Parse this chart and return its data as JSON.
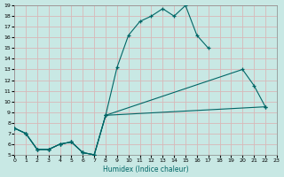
{
  "xlabel": "Humidex (Indice chaleur)",
  "bg_color": "#c8e8e4",
  "grid_color": "#d8b8b8",
  "line_color": "#006666",
  "xlim": [
    0,
    23
  ],
  "ylim": [
    5,
    19
  ],
  "xticks": [
    0,
    1,
    2,
    3,
    4,
    5,
    6,
    7,
    8,
    9,
    10,
    11,
    12,
    13,
    14,
    15,
    16,
    17,
    18,
    19,
    20,
    21,
    22,
    23
  ],
  "yticks": [
    5,
    6,
    7,
    8,
    9,
    10,
    11,
    12,
    13,
    14,
    15,
    16,
    17,
    18,
    19
  ],
  "curve1_x": [
    0,
    1,
    2,
    3,
    4,
    5,
    6,
    7,
    8,
    9,
    10,
    11,
    12,
    13,
    14,
    15,
    16,
    17
  ],
  "curve1_y": [
    7.5,
    7.0,
    5.5,
    5.5,
    6.0,
    6.2,
    5.2,
    5.0,
    8.7,
    13.2,
    16.2,
    17.5,
    18.0,
    18.7,
    18.0,
    19.0,
    16.2,
    15.0
  ],
  "curve2_x": [
    0,
    1,
    2,
    3,
    4,
    5,
    6,
    7,
    8,
    20,
    21,
    22
  ],
  "curve2_y": [
    7.5,
    7.0,
    5.5,
    5.5,
    6.0,
    6.2,
    5.2,
    5.0,
    8.7,
    13.0,
    11.5,
    9.5
  ],
  "curve3_x": [
    0,
    1,
    2,
    3,
    4,
    5,
    6,
    7,
    8,
    22
  ],
  "curve3_y": [
    7.5,
    7.0,
    5.5,
    5.5,
    6.0,
    6.2,
    5.2,
    5.0,
    8.7,
    9.5
  ]
}
